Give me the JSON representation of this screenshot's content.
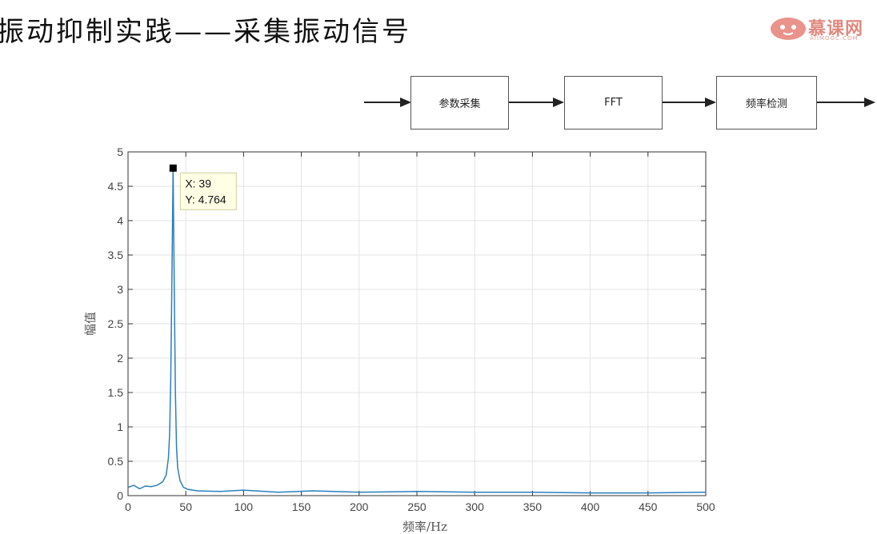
{
  "slide": {
    "title": "振动抑制实践——采集振动信号"
  },
  "logo": {
    "text": "慕课网",
    "sub": "AIIMOOC.COM",
    "color": "#e6857a"
  },
  "flow": {
    "steps": [
      "参数采集",
      "FFT",
      "频率检测"
    ]
  },
  "chart_data": {
    "type": "line",
    "xlabel": "频率/Hz",
    "ylabel": "幅值",
    "xlim": [
      0,
      500
    ],
    "ylim": [
      0,
      5
    ],
    "xticks": [
      0,
      50,
      100,
      150,
      200,
      250,
      300,
      350,
      400,
      450,
      500
    ],
    "yticks": [
      0,
      0.5,
      1,
      1.5,
      2,
      2.5,
      3,
      3.5,
      4,
      4.5,
      5
    ],
    "grid": true,
    "series_color": "#2a7fc0",
    "series": [
      {
        "x": [
          0,
          5,
          10,
          15,
          20,
          25,
          30,
          33,
          35,
          36,
          37,
          38,
          39,
          40,
          41,
          42,
          43,
          45,
          48,
          52,
          60,
          80,
          100,
          130,
          160,
          200,
          250,
          300,
          350,
          400,
          450,
          500
        ],
        "values": [
          0.12,
          0.15,
          0.1,
          0.14,
          0.13,
          0.15,
          0.2,
          0.3,
          0.55,
          0.9,
          1.7,
          3.2,
          4.764,
          3.0,
          1.5,
          0.7,
          0.4,
          0.22,
          0.12,
          0.09,
          0.07,
          0.06,
          0.08,
          0.05,
          0.07,
          0.05,
          0.06,
          0.05,
          0.05,
          0.04,
          0.04,
          0.05
        ]
      }
    ],
    "datatip": {
      "x": 39,
      "y": 4.764,
      "x_label": "X: 39",
      "y_label": "Y: 4.764"
    }
  }
}
